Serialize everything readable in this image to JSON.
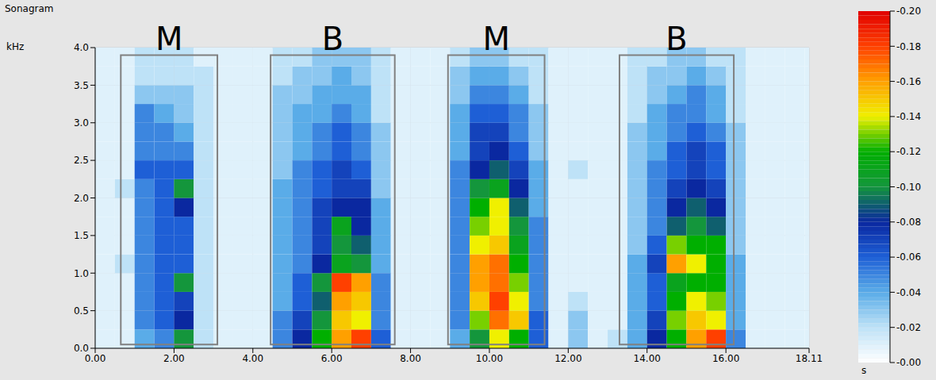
{
  "chart_data": {
    "type": "heatmap",
    "title": "Sonagram",
    "y_label": "kHz",
    "xlim": [
      0,
      18.11
    ],
    "xticks": [
      {
        "value": 0,
        "label": "0.00"
      },
      {
        "value": 2,
        "label": "2.00"
      },
      {
        "value": 4,
        "label": "4.00"
      },
      {
        "value": 6,
        "label": "6.00"
      },
      {
        "value": 8,
        "label": "8.00"
      },
      {
        "value": 10,
        "label": "10.00"
      },
      {
        "value": 12,
        "label": "12.00"
      },
      {
        "value": 14,
        "label": "14.00"
      },
      {
        "value": 16,
        "label": "16.00"
      },
      {
        "value": 18.11,
        "label": "18.11"
      }
    ],
    "ylim": [
      0,
      4
    ],
    "yticks": [
      {
        "value": 0,
        "label": "0.0"
      },
      {
        "value": 0.5,
        "label": "0.5"
      },
      {
        "value": 1,
        "label": "1.0"
      },
      {
        "value": 1.5,
        "label": "1.5"
      },
      {
        "value": 2,
        "label": "2.0"
      },
      {
        "value": 2.5,
        "label": "2.5"
      },
      {
        "value": 3,
        "label": "3.0"
      },
      {
        "value": 3.5,
        "label": "3.5"
      },
      {
        "value": 4,
        "label": "4.0"
      }
    ],
    "grid": true,
    "x_edges": [
      0,
      0.5,
      1,
      1.5,
      2,
      2.5,
      3,
      3.5,
      4,
      4.5,
      5,
      5.5,
      6,
      6.5,
      7,
      7.5,
      8,
      8.5,
      9,
      9.5,
      10,
      10.5,
      11,
      11.5,
      12,
      12.5,
      13,
      13.5,
      14,
      14.5,
      15,
      15.5,
      16,
      16.5,
      17,
      17.5,
      18,
      18.11
    ],
    "y_edges": [
      0,
      0.25,
      0.5,
      0.75,
      1,
      1.25,
      1.5,
      1.75,
      2,
      2.25,
      2.5,
      2.75,
      3,
      3.25,
      3.5,
      3.75,
      4
    ],
    "cells": [
      [
        -0.01,
        -0.01,
        -0.04,
        -0.05,
        -0.1,
        -0.02,
        -0.01,
        -0.01,
        -0.01,
        -0.05,
        -0.08,
        -0.12,
        -0.16,
        -0.18,
        -0.06,
        -0.01,
        -0.01,
        -0.01,
        -0.04,
        -0.1,
        -0.14,
        -0.12,
        -0.06,
        -0.01,
        -0.03,
        -0.01,
        -0.02,
        -0.04,
        -0.08,
        -0.12,
        -0.16,
        -0.18,
        -0.05,
        -0.01,
        -0.01,
        -0.01,
        -0.01
      ],
      [
        -0.01,
        -0.01,
        -0.05,
        -0.06,
        -0.08,
        -0.02,
        -0.01,
        -0.01,
        -0.01,
        -0.05,
        -0.07,
        -0.1,
        -0.15,
        -0.14,
        -0.05,
        -0.01,
        -0.01,
        -0.01,
        -0.05,
        -0.13,
        -0.17,
        -0.15,
        -0.06,
        -0.01,
        -0.03,
        -0.01,
        -0.01,
        -0.04,
        -0.07,
        -0.13,
        -0.15,
        -0.14,
        -0.04,
        -0.01,
        -0.01,
        -0.01,
        -0.01
      ],
      [
        -0.01,
        -0.01,
        -0.05,
        -0.06,
        -0.07,
        -0.02,
        -0.01,
        -0.01,
        -0.01,
        -0.04,
        -0.06,
        -0.09,
        -0.16,
        -0.15,
        -0.05,
        -0.01,
        -0.01,
        -0.01,
        -0.05,
        -0.15,
        -0.18,
        -0.14,
        -0.05,
        -0.01,
        -0.02,
        -0.01,
        -0.01,
        -0.04,
        -0.06,
        -0.12,
        -0.14,
        -0.13,
        -0.04,
        -0.01,
        -0.01,
        -0.01,
        -0.01
      ],
      [
        -0.01,
        -0.01,
        -0.05,
        -0.06,
        -0.1,
        -0.02,
        -0.01,
        -0.01,
        -0.01,
        -0.04,
        -0.06,
        -0.1,
        -0.18,
        -0.16,
        -0.05,
        -0.01,
        -0.01,
        -0.01,
        -0.05,
        -0.16,
        -0.17,
        -0.13,
        -0.05,
        -0.01,
        -0.01,
        -0.01,
        -0.01,
        -0.04,
        -0.06,
        -0.11,
        -0.12,
        -0.12,
        -0.04,
        -0.01,
        -0.01,
        -0.01,
        -0.01
      ],
      [
        -0.01,
        -0.02,
        -0.05,
        -0.06,
        -0.06,
        -0.02,
        -0.01,
        -0.01,
        -0.01,
        -0.04,
        -0.05,
        -0.08,
        -0.11,
        -0.1,
        -0.04,
        -0.01,
        -0.01,
        -0.01,
        -0.05,
        -0.16,
        -0.17,
        -0.12,
        -0.05,
        -0.01,
        -0.01,
        -0.01,
        -0.01,
        -0.04,
        -0.07,
        -0.16,
        -0.14,
        -0.12,
        -0.04,
        -0.01,
        -0.01,
        -0.01,
        -0.01
      ],
      [
        -0.01,
        -0.01,
        -0.05,
        -0.06,
        -0.06,
        -0.02,
        -0.01,
        -0.01,
        -0.01,
        -0.04,
        -0.05,
        -0.07,
        -0.1,
        -0.09,
        -0.04,
        -0.01,
        -0.01,
        -0.01,
        -0.05,
        -0.14,
        -0.15,
        -0.11,
        -0.05,
        -0.01,
        -0.01,
        -0.01,
        -0.01,
        -0.03,
        -0.06,
        -0.13,
        -0.12,
        -0.12,
        -0.03,
        -0.01,
        -0.01,
        -0.01,
        -0.01
      ],
      [
        -0.01,
        -0.01,
        -0.05,
        -0.06,
        -0.06,
        -0.02,
        -0.01,
        -0.01,
        -0.01,
        -0.04,
        -0.05,
        -0.07,
        -0.11,
        -0.08,
        -0.04,
        -0.01,
        -0.01,
        -0.01,
        -0.05,
        -0.13,
        -0.14,
        -0.1,
        -0.05,
        -0.01,
        -0.01,
        -0.01,
        -0.01,
        -0.03,
        -0.05,
        -0.09,
        -0.1,
        -0.09,
        -0.03,
        -0.01,
        -0.01,
        -0.01,
        -0.01
      ],
      [
        -0.01,
        -0.01,
        -0.05,
        -0.06,
        -0.08,
        -0.02,
        -0.01,
        -0.01,
        -0.01,
        -0.04,
        -0.05,
        -0.07,
        -0.08,
        -0.08,
        -0.04,
        -0.01,
        -0.01,
        -0.01,
        -0.05,
        -0.12,
        -0.14,
        -0.09,
        -0.04,
        -0.01,
        -0.01,
        -0.01,
        -0.01,
        -0.03,
        -0.05,
        -0.08,
        -0.09,
        -0.08,
        -0.03,
        -0.01,
        -0.01,
        -0.01,
        -0.01
      ],
      [
        -0.01,
        -0.02,
        -0.05,
        -0.06,
        -0.1,
        -0.02,
        -0.01,
        -0.01,
        -0.01,
        -0.04,
        -0.05,
        -0.06,
        -0.07,
        -0.07,
        -0.03,
        -0.01,
        -0.01,
        -0.01,
        -0.05,
        -0.1,
        -0.11,
        -0.08,
        -0.04,
        -0.01,
        -0.01,
        -0.01,
        -0.01,
        -0.03,
        -0.05,
        -0.07,
        -0.08,
        -0.07,
        -0.03,
        -0.01,
        -0.01,
        -0.01,
        -0.01
      ],
      [
        -0.01,
        -0.01,
        -0.06,
        -0.06,
        -0.06,
        -0.02,
        -0.01,
        -0.01,
        -0.01,
        -0.03,
        -0.05,
        -0.06,
        -0.07,
        -0.06,
        -0.03,
        -0.01,
        -0.01,
        -0.01,
        -0.05,
        -0.08,
        -0.09,
        -0.07,
        -0.04,
        -0.01,
        -0.02,
        -0.01,
        -0.01,
        -0.03,
        -0.05,
        -0.06,
        -0.07,
        -0.06,
        -0.03,
        -0.01,
        -0.01,
        -0.01,
        -0.01
      ],
      [
        -0.01,
        -0.01,
        -0.05,
        -0.05,
        -0.05,
        -0.02,
        -0.01,
        -0.01,
        -0.01,
        -0.03,
        -0.04,
        -0.05,
        -0.06,
        -0.05,
        -0.03,
        -0.01,
        -0.01,
        -0.01,
        -0.04,
        -0.07,
        -0.08,
        -0.06,
        -0.03,
        -0.01,
        -0.01,
        -0.01,
        -0.01,
        -0.03,
        -0.04,
        -0.06,
        -0.07,
        -0.06,
        -0.03,
        -0.01,
        -0.01,
        -0.01,
        -0.01
      ],
      [
        -0.01,
        -0.01,
        -0.05,
        -0.05,
        -0.04,
        -0.02,
        -0.01,
        -0.01,
        -0.01,
        -0.03,
        -0.04,
        -0.05,
        -0.06,
        -0.05,
        -0.03,
        -0.01,
        -0.01,
        -0.01,
        -0.04,
        -0.07,
        -0.07,
        -0.05,
        -0.03,
        -0.01,
        -0.01,
        -0.01,
        -0.01,
        -0.03,
        -0.04,
        -0.05,
        -0.06,
        -0.05,
        -0.03,
        -0.01,
        -0.01,
        -0.01,
        -0.01
      ],
      [
        -0.01,
        -0.01,
        -0.05,
        -0.04,
        -0.03,
        -0.02,
        -0.01,
        -0.01,
        -0.01,
        -0.03,
        -0.04,
        -0.04,
        -0.05,
        -0.04,
        -0.02,
        -0.01,
        -0.01,
        -0.01,
        -0.04,
        -0.06,
        -0.06,
        -0.05,
        -0.03,
        -0.01,
        -0.01,
        -0.01,
        -0.01,
        -0.02,
        -0.04,
        -0.05,
        -0.05,
        -0.04,
        -0.02,
        -0.01,
        -0.01,
        -0.01,
        -0.01
      ],
      [
        -0.01,
        -0.01,
        -0.03,
        -0.03,
        -0.03,
        -0.02,
        -0.01,
        -0.01,
        -0.01,
        -0.03,
        -0.03,
        -0.04,
        -0.04,
        -0.04,
        -0.02,
        -0.01,
        -0.01,
        -0.01,
        -0.03,
        -0.05,
        -0.05,
        -0.04,
        -0.02,
        -0.01,
        -0.01,
        -0.01,
        -0.01,
        -0.02,
        -0.03,
        -0.04,
        -0.05,
        -0.04,
        -0.02,
        -0.01,
        -0.01,
        -0.01,
        -0.01
      ],
      [
        -0.01,
        -0.01,
        -0.02,
        -0.02,
        -0.02,
        -0.02,
        -0.01,
        -0.01,
        -0.01,
        -0.02,
        -0.03,
        -0.03,
        -0.04,
        -0.03,
        -0.02,
        -0.01,
        -0.01,
        -0.01,
        -0.03,
        -0.04,
        -0.04,
        -0.03,
        -0.02,
        -0.01,
        -0.01,
        -0.01,
        -0.01,
        -0.02,
        -0.03,
        -0.03,
        -0.04,
        -0.03,
        -0.02,
        -0.01,
        -0.01,
        -0.01,
        -0.01
      ],
      [
        -0.01,
        -0.01,
        -0.02,
        -0.02,
        -0.02,
        -0.01,
        -0.01,
        -0.01,
        -0.01,
        -0.02,
        -0.02,
        -0.03,
        -0.03,
        -0.03,
        -0.02,
        -0.01,
        -0.01,
        -0.01,
        -0.02,
        -0.03,
        -0.03,
        -0.02,
        -0.02,
        -0.01,
        -0.01,
        -0.01,
        -0.01,
        -0.02,
        -0.02,
        -0.03,
        -0.03,
        -0.02,
        -0.02,
        -0.01,
        -0.01,
        -0.01,
        -0.01
      ]
    ],
    "colorbar": {
      "range": [
        -0.2,
        0
      ],
      "label": "s",
      "ticks": [
        {
          "value": -0.2,
          "label": "-0.20"
        },
        {
          "value": -0.18,
          "label": "-0.18"
        },
        {
          "value": -0.16,
          "label": "-0.16"
        },
        {
          "value": -0.14,
          "label": "-0.14"
        },
        {
          "value": -0.12,
          "label": "-0.12"
        },
        {
          "value": -0.1,
          "label": "-0.10"
        },
        {
          "value": -0.08,
          "label": "-0.08"
        },
        {
          "value": -0.06,
          "label": "-0.06"
        },
        {
          "value": -0.04,
          "label": "-0.04"
        },
        {
          "value": -0.02,
          "label": "-0.02"
        },
        {
          "value": 0,
          "label": "-0.00"
        }
      ]
    },
    "annotations": [
      {
        "text": "M",
        "x": [
          0.65,
          3.1
        ],
        "y": [
          0.05,
          3.9
        ]
      },
      {
        "text": "B",
        "x": [
          4.45,
          7.6
        ],
        "y": [
          0.05,
          3.9
        ]
      },
      {
        "text": "M",
        "x": [
          8.95,
          11.4
        ],
        "y": [
          0.05,
          3.9
        ]
      },
      {
        "text": "B",
        "x": [
          13.3,
          16.2
        ],
        "y": [
          0.05,
          3.9
        ]
      }
    ]
  }
}
